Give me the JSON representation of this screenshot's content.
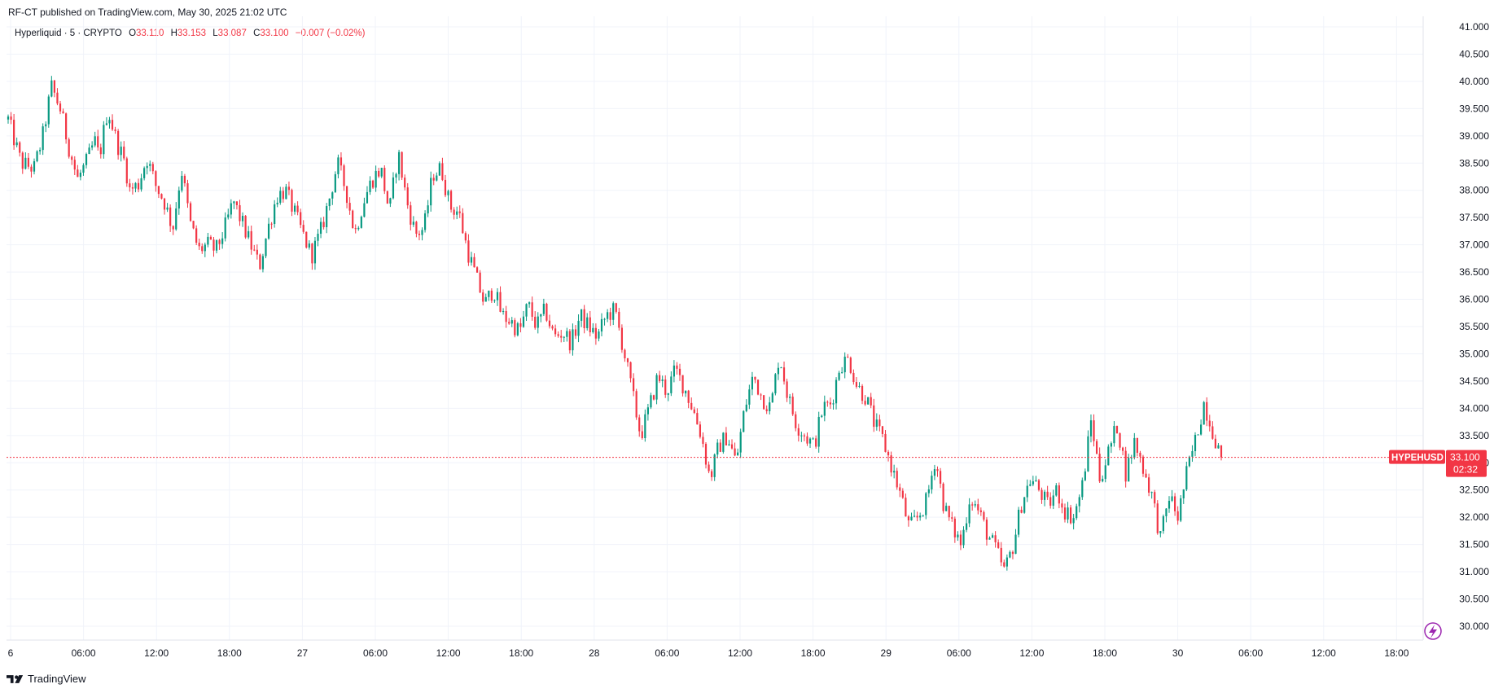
{
  "header": {
    "publisher": "RF-CT published on TradingView.com, May 30, 2025 21:02 UTC"
  },
  "legend": {
    "symbol": "Hyperliquid · 5 · CRYPTO",
    "o_label": "O",
    "o_value": "33.110",
    "h_label": "H",
    "h_value": "33.153",
    "l_label": "L",
    "l_value": "33.087",
    "c_label": "C",
    "c_value": "33.100",
    "change": "−0.007 (−0.02%)"
  },
  "price_tag": {
    "symbol": "HYPEHUSD",
    "price": "33.100",
    "countdown": "02:32"
  },
  "footer": {
    "brand": "TradingView"
  },
  "colors": {
    "up": "#089981",
    "down": "#f23645",
    "grid": "#f0f3fa",
    "last_price_line": "#f23645",
    "lightning": "#9c27b0"
  },
  "chart_data": {
    "type": "candlestick",
    "interval": "5",
    "ylim": [
      29.8,
      41.0
    ],
    "y_ticks": [
      "41.000",
      "40.500",
      "40.000",
      "39.500",
      "39.000",
      "38.500",
      "38.000",
      "37.500",
      "37.000",
      "36.500",
      "36.000",
      "35.500",
      "35.000",
      "34.500",
      "34.000",
      "33.500",
      "33.000",
      "32.500",
      "32.000",
      "31.500",
      "31.000",
      "30.500",
      "30.000"
    ],
    "x_ticks": [
      "6",
      "06:00",
      "12:00",
      "18:00",
      "27",
      "06:00",
      "12:00",
      "18:00",
      "28",
      "06:00",
      "12:00",
      "18:00",
      "29",
      "06:00",
      "12:00",
      "18:00",
      "30",
      "06:00",
      "12:00",
      "18:00"
    ],
    "last_price": 33.1,
    "path_keypoints": [
      [
        0,
        39.3
      ],
      [
        3,
        38.5
      ],
      [
        6,
        38.4
      ],
      [
        8,
        39.0
      ],
      [
        10,
        39.9
      ],
      [
        12,
        39.5
      ],
      [
        14,
        38.8
      ],
      [
        16,
        38.2
      ],
      [
        18,
        38.5
      ],
      [
        20,
        38.9
      ],
      [
        21,
        38.6
      ],
      [
        23,
        39.5
      ],
      [
        25,
        38.9
      ],
      [
        27,
        38.5
      ],
      [
        28,
        38.0
      ],
      [
        30,
        38.1
      ],
      [
        32,
        38.6
      ],
      [
        34,
        38.1
      ],
      [
        36,
        37.8
      ],
      [
        38,
        37.3
      ],
      [
        40,
        38.4
      ],
      [
        42,
        37.4
      ],
      [
        44,
        36.9
      ],
      [
        46,
        37.0
      ],
      [
        48,
        36.9
      ],
      [
        50,
        37.3
      ],
      [
        52,
        37.8
      ],
      [
        54,
        37.4
      ],
      [
        56,
        37.0
      ],
      [
        58,
        36.6
      ],
      [
        60,
        37.3
      ],
      [
        62,
        37.9
      ],
      [
        64,
        38.0
      ],
      [
        66,
        37.6
      ],
      [
        68,
        37.2
      ],
      [
        70,
        36.8
      ],
      [
        72,
        37.2
      ],
      [
        74,
        37.8
      ],
      [
        76,
        38.5
      ],
      [
        78,
        38.0
      ],
      [
        80,
        37.2
      ],
      [
        82,
        37.8
      ],
      [
        84,
        38.2
      ],
      [
        86,
        38.4
      ],
      [
        88,
        37.6
      ],
      [
        90,
        38.7
      ],
      [
        92,
        37.8
      ],
      [
        94,
        37.2
      ],
      [
        96,
        37.3
      ],
      [
        98,
        38.3
      ],
      [
        100,
        38.4
      ],
      [
        102,
        37.7
      ],
      [
        104,
        37.6
      ],
      [
        106,
        36.9
      ],
      [
        108,
        36.4
      ],
      [
        110,
        35.9
      ],
      [
        112,
        36.2
      ],
      [
        114,
        35.7
      ],
      [
        116,
        35.6
      ],
      [
        118,
        35.4
      ],
      [
        120,
        35.9
      ],
      [
        122,
        35.5
      ],
      [
        124,
        35.8
      ],
      [
        126,
        35.3
      ],
      [
        128,
        35.4
      ],
      [
        130,
        35.2
      ],
      [
        132,
        35.7
      ],
      [
        134,
        35.5
      ],
      [
        136,
        35.3
      ],
      [
        138,
        35.7
      ],
      [
        140,
        35.8
      ],
      [
        142,
        35.1
      ],
      [
        144,
        34.3
      ],
      [
        146,
        33.5
      ],
      [
        148,
        34.0
      ],
      [
        150,
        34.6
      ],
      [
        152,
        34.3
      ],
      [
        154,
        34.7
      ],
      [
        156,
        34.4
      ],
      [
        158,
        34.0
      ],
      [
        160,
        33.5
      ],
      [
        162,
        32.7
      ],
      [
        164,
        33.3
      ],
      [
        166,
        33.5
      ],
      [
        168,
        33.0
      ],
      [
        170,
        34.0
      ],
      [
        172,
        34.6
      ],
      [
        174,
        34.2
      ],
      [
        176,
        34.0
      ],
      [
        178,
        35.0
      ],
      [
        180,
        34.2
      ],
      [
        182,
        33.7
      ],
      [
        184,
        33.5
      ],
      [
        186,
        33.3
      ],
      [
        188,
        34.0
      ],
      [
        190,
        34.1
      ],
      [
        192,
        34.8
      ],
      [
        194,
        34.9
      ],
      [
        196,
        34.4
      ],
      [
        198,
        34.2
      ],
      [
        200,
        33.7
      ],
      [
        202,
        33.4
      ],
      [
        204,
        32.9
      ],
      [
        206,
        32.4
      ],
      [
        208,
        31.8
      ],
      [
        210,
        32.0
      ],
      [
        212,
        32.3
      ],
      [
        214,
        33.1
      ],
      [
        216,
        32.2
      ],
      [
        218,
        31.8
      ],
      [
        220,
        31.5
      ],
      [
        222,
        32.4
      ],
      [
        224,
        32.1
      ],
      [
        226,
        31.7
      ],
      [
        228,
        31.4
      ],
      [
        230,
        31.0
      ],
      [
        232,
        31.5
      ],
      [
        234,
        32.3
      ],
      [
        236,
        32.7
      ],
      [
        238,
        32.5
      ],
      [
        240,
        32.2
      ],
      [
        242,
        32.5
      ],
      [
        244,
        32.1
      ],
      [
        246,
        32.0
      ],
      [
        248,
        32.6
      ],
      [
        250,
        33.8
      ],
      [
        252,
        32.7
      ],
      [
        254,
        33.2
      ],
      [
        256,
        33.7
      ],
      [
        258,
        32.8
      ],
      [
        260,
        33.4
      ],
      [
        262,
        32.9
      ],
      [
        264,
        32.4
      ],
      [
        266,
        31.6
      ],
      [
        268,
        32.4
      ],
      [
        270,
        32.0
      ],
      [
        272,
        32.8
      ],
      [
        274,
        33.4
      ],
      [
        276,
        34.1
      ],
      [
        278,
        33.6
      ],
      [
        280,
        33.1
      ]
    ]
  }
}
